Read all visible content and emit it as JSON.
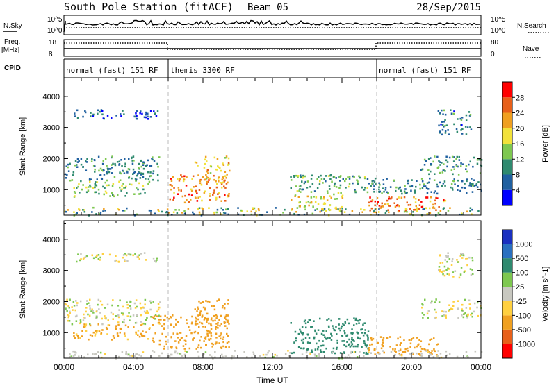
{
  "header": {
    "title": "South Pole Station (fitACF)",
    "beam": "Beam 05",
    "date": "28/Sep/2015"
  },
  "status_panel": {
    "nsky_label": "N.Sky",
    "nsky_ticks": [
      "10^5",
      "10^0"
    ],
    "nsearch_label": "N.Search",
    "nsearch_ticks": [
      "10^5",
      "10^0"
    ],
    "freq_label": "Freq.",
    "freq_unit": "[MHz]",
    "freq_ticks": [
      "18",
      "8"
    ],
    "nave_label": "Nave",
    "nave_ticks": [
      "80",
      "0"
    ],
    "cpid_label": "CPID",
    "cpid_segments": [
      {
        "label": "normal (fast) 151 RF",
        "start_h": 0,
        "end_h": 6
      },
      {
        "label": "themis 3300 RF",
        "start_h": 6,
        "end_h": 18
      },
      {
        "label": "normal (fast) 151 RF",
        "start_h": 18,
        "end_h": 24
      }
    ]
  },
  "chart_data": [
    {
      "type": "heatmap",
      "title": "",
      "ylabel": "Slant Range [km]",
      "xlabel": "",
      "xlim": [
        0,
        24
      ],
      "ylim": [
        180,
        4600
      ],
      "yticks": [
        "4000",
        "3000",
        "2000",
        "1000"
      ],
      "colorbar": {
        "label": "Power [dB]",
        "ticks": [
          "28",
          "24",
          "20",
          "16",
          "12",
          "8",
          "4"
        ],
        "colors": [
          "#0000ff",
          "#2060a0",
          "#2f8a6f",
          "#7ec850",
          "#f2e23a",
          "#f0a020",
          "#e8601a",
          "#ff0000"
        ]
      },
      "patches": [
        {
          "t0": 0.0,
          "t1": 5.5,
          "r0": 1300,
          "r1": 2100,
          "v": 9
        },
        {
          "t0": 0.5,
          "t1": 5.0,
          "r0": 800,
          "r1": 1300,
          "v": 14
        },
        {
          "t0": 6.0,
          "t1": 9.5,
          "r0": 600,
          "r1": 1500,
          "v": 24
        },
        {
          "t0": 7.5,
          "t1": 9.5,
          "r0": 1300,
          "r1": 2100,
          "v": 20
        },
        {
          "t0": 0.5,
          "t1": 5.5,
          "r0": 3300,
          "r1": 3600,
          "v": 6
        },
        {
          "t0": 13.0,
          "t1": 16.0,
          "r0": 350,
          "r1": 900,
          "v": 18
        },
        {
          "t0": 13.0,
          "t1": 17.5,
          "r0": 900,
          "r1": 1500,
          "v": 12
        },
        {
          "t0": 17.5,
          "t1": 22.0,
          "r0": 300,
          "r1": 800,
          "v": 24
        },
        {
          "t0": 17.5,
          "t1": 24.0,
          "r0": 900,
          "r1": 1400,
          "v": 9
        },
        {
          "t0": 20.5,
          "t1": 24.0,
          "r0": 1500,
          "r1": 2100,
          "v": 10
        },
        {
          "t0": 21.5,
          "t1": 23.5,
          "r0": 2800,
          "r1": 3600,
          "v": 8
        }
      ]
    },
    {
      "type": "heatmap",
      "title": "",
      "ylabel": "Slant Range [km]",
      "xlabel": "Time UT",
      "xlim": [
        0,
        24
      ],
      "ylim": [
        180,
        4600
      ],
      "xticks": [
        "00:00",
        "04:00",
        "08:00",
        "12:00",
        "16:00",
        "20:00",
        "00:00"
      ],
      "yticks": [
        "4000",
        "3000",
        "2000",
        "1000"
      ],
      "colorbar": {
        "label": "Velocity [m s^-1]",
        "ticks": [
          "1000",
          "500",
          "100",
          "25",
          "-25",
          "-100",
          "-500",
          "-1000"
        ],
        "colors": [
          "#ff0000",
          "#e8601a",
          "#f0a020",
          "#ffd040",
          "#c8c8c0",
          "#7ec850",
          "#2f8a6f",
          "#2a70c0",
          "#1a30c0"
        ]
      },
      "patches": [
        {
          "t0": 0.0,
          "t1": 5.5,
          "r0": 1300,
          "r1": 2100,
          "v": 0
        },
        {
          "t0": 0.5,
          "t1": 5.0,
          "r0": 800,
          "r1": 1300,
          "v": -150
        },
        {
          "t0": 5.0,
          "t1": 9.5,
          "r0": 500,
          "r1": 1600,
          "v": -300
        },
        {
          "t0": 7.5,
          "t1": 9.5,
          "r0": 1300,
          "r1": 2100,
          "v": -200
        },
        {
          "t0": 0.5,
          "t1": 5.5,
          "r0": 3300,
          "r1": 3600,
          "v": 0
        },
        {
          "t0": 13.0,
          "t1": 17.5,
          "r0": 350,
          "r1": 1500,
          "v": 300
        },
        {
          "t0": 17.5,
          "t1": 21.5,
          "r0": 300,
          "r1": 900,
          "v": -300
        },
        {
          "t0": 20.5,
          "t1": 24.0,
          "r0": 1500,
          "r1": 2100,
          "v": 0
        },
        {
          "t0": 21.5,
          "t1": 23.5,
          "r0": 2800,
          "r1": 3600,
          "v": 0
        }
      ]
    }
  ]
}
